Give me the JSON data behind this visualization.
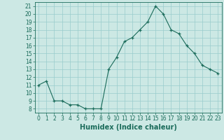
{
  "x": [
    0,
    1,
    2,
    3,
    4,
    5,
    6,
    7,
    8,
    9,
    10,
    11,
    12,
    13,
    14,
    15,
    16,
    17,
    18,
    19,
    20,
    21,
    22,
    23
  ],
  "y": [
    11,
    11.5,
    9,
    9,
    8.5,
    8.5,
    8,
    8,
    8,
    13,
    14.5,
    16.5,
    17,
    18,
    19,
    21,
    20,
    18,
    17.5,
    16,
    15,
    13.5,
    13,
    12.5
  ],
  "title": "",
  "xlabel": "Humidex (Indice chaleur)",
  "ylabel": "",
  "xlim": [
    -0.5,
    23.5
  ],
  "ylim": [
    7.5,
    21.5
  ],
  "yticks": [
    8,
    9,
    10,
    11,
    12,
    13,
    14,
    15,
    16,
    17,
    18,
    19,
    20,
    21
  ],
  "xticks": [
    0,
    1,
    2,
    3,
    4,
    5,
    6,
    7,
    8,
    9,
    10,
    11,
    12,
    13,
    14,
    15,
    16,
    17,
    18,
    19,
    20,
    21,
    22,
    23
  ],
  "line_color": "#1a6b5a",
  "marker_color": "#1a6b5a",
  "bg_color": "#cce8e4",
  "grid_color": "#99cccc",
  "axes_color": "#1a6b5a",
  "tick_fontsize": 5.5,
  "xlabel_fontsize": 7.0
}
